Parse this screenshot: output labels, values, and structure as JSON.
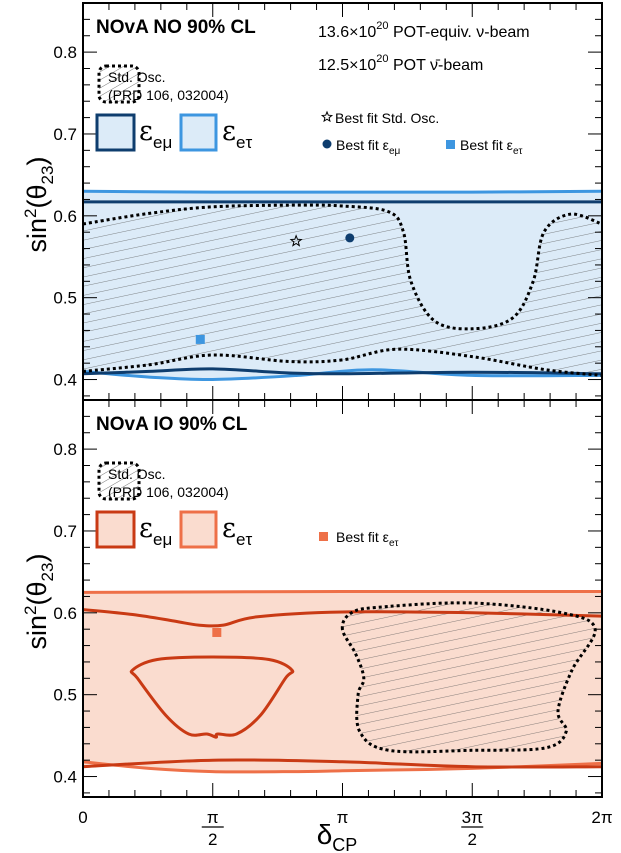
{
  "chart_data": [
    {
      "type": "area",
      "title": "NOvA NO 90% CL",
      "exposure_lines": [
        "13.6×10^20 POT-equiv. ν-beam",
        "12.5×10^20 POT ν̄-beam"
      ],
      "xlabel": "δCP",
      "ylabel": "sin²(θ23)",
      "xlim": [
        0,
        6.2832
      ],
      "ylim": [
        0.375,
        0.86
      ],
      "x_tick_labels": [
        "0",
        "π/2",
        "π",
        "3π/2",
        "2π"
      ],
      "y_tick_labels": [
        "0.4",
        "0.5",
        "0.6",
        "0.7",
        "0.8"
      ],
      "legend": {
        "std_label": [
          "Std. Osc.",
          "(PRD 106, 032004)"
        ],
        "eps_labels": [
          "ε_eμ",
          "ε_eτ"
        ],
        "best_fit_labels": [
          "Best fit Std. Osc.",
          "Best fit ε_eμ",
          "Best fit ε_eτ"
        ]
      },
      "colors": {
        "emu": "#0e3d6e",
        "etau": "#3d96e0",
        "fill": "#dcebf8"
      },
      "series": [
        {
          "name": "ε_eμ",
          "upper": [
            [
              0,
              0.617
            ],
            [
              1.57,
              0.617
            ],
            [
              3.14,
              0.617
            ],
            [
              4.71,
              0.617
            ],
            [
              6.28,
              0.617
            ]
          ],
          "lower": [
            [
              0,
              0.407
            ],
            [
              0.8,
              0.41
            ],
            [
              1.57,
              0.413
            ],
            [
              2.5,
              0.408
            ],
            [
              3.14,
              0.407
            ],
            [
              4.71,
              0.409
            ],
            [
              6.28,
              0.407
            ]
          ]
        },
        {
          "name": "ε_eτ",
          "upper": [
            [
              0,
              0.63
            ],
            [
              1.57,
              0.629
            ],
            [
              3.14,
              0.629
            ],
            [
              4.71,
              0.629
            ],
            [
              6.28,
              0.63
            ]
          ],
          "lower": [
            [
              0,
              0.41
            ],
            [
              0.8,
              0.403
            ],
            [
              1.57,
              0.4
            ],
            [
              2.6,
              0.405
            ],
            [
              3.5,
              0.412
            ],
            [
              4.71,
              0.405
            ],
            [
              6.28,
              0.405
            ]
          ]
        },
        {
          "name": "Std. Osc.",
          "upper": [
            [
              0,
              0.59
            ],
            [
              0.8,
              0.603
            ],
            [
              1.57,
              0.611
            ],
            [
              2.5,
              0.613
            ],
            [
              3.14,
              0.612
            ],
            [
              3.7,
              0.605
            ],
            [
              3.88,
              0.58
            ],
            [
              3.97,
              0.52
            ],
            [
              4.25,
              0.472
            ],
            [
              4.71,
              0.462
            ],
            [
              5.2,
              0.475
            ],
            [
              5.45,
              0.52
            ],
            [
              5.58,
              0.58
            ],
            [
              5.9,
              0.602
            ],
            [
              6.28,
              0.59
            ]
          ],
          "lower": [
            [
              0,
              0.41
            ],
            [
              0.8,
              0.418
            ],
            [
              1.57,
              0.43
            ],
            [
              2.5,
              0.422
            ],
            [
              3.14,
              0.424
            ],
            [
              3.8,
              0.437
            ],
            [
              4.71,
              0.428
            ],
            [
              5.6,
              0.412
            ],
            [
              6.28,
              0.405
            ]
          ]
        }
      ],
      "best_fits": [
        {
          "name": "Best fit Std. Osc.",
          "x": 2.58,
          "y": 0.569,
          "marker": "star"
        },
        {
          "name": "Best fit ε_eμ",
          "x": 3.23,
          "y": 0.573,
          "marker": "circle"
        },
        {
          "name": "Best fit ε_eτ",
          "x": 1.42,
          "y": 0.449,
          "marker": "square"
        }
      ]
    },
    {
      "type": "area",
      "title": "NOvA IO 90% CL",
      "xlabel": "δCP",
      "ylabel": "sin²(θ23)",
      "xlim": [
        0,
        6.2832
      ],
      "ylim": [
        0.375,
        0.86
      ],
      "x_tick_labels": [
        "0",
        "π/2",
        "π",
        "3π/2",
        "2π"
      ],
      "y_tick_labels": [
        "0.4",
        "0.5",
        "0.6",
        "0.7",
        "0.8"
      ],
      "legend": {
        "std_label": [
          "Std. Osc.",
          "(PRD 106, 032004)"
        ],
        "eps_labels": [
          "ε_eμ",
          "ε_eτ"
        ],
        "best_fit_labels": [
          "Best fit ε_eτ"
        ]
      },
      "colors": {
        "emu": "#c93a14",
        "etau": "#ee7048",
        "fill": "#fadccf"
      },
      "series": [
        {
          "name": "ε_eμ",
          "upper": [
            [
              0,
              0.604
            ],
            [
              0.6,
              0.598
            ],
            [
              1.1,
              0.59
            ],
            [
              1.4,
              0.585
            ],
            [
              1.7,
              0.585
            ],
            [
              2.1,
              0.595
            ],
            [
              3.14,
              0.601
            ],
            [
              4.71,
              0.6
            ],
            [
              6.28,
              0.596
            ]
          ],
          "lower": [
            [
              0,
              0.412
            ],
            [
              1.57,
              0.42
            ],
            [
              3.14,
              0.418
            ],
            [
              4.71,
              0.412
            ],
            [
              6.28,
              0.412
            ]
          ],
          "island": [
            [
              1.61,
              0.448
            ],
            [
              1.5,
              0.452
            ],
            [
              1.28,
              0.452
            ],
            [
              1.0,
              0.475
            ],
            [
              0.66,
              0.52
            ],
            [
              0.6,
              0.53
            ],
            [
              0.9,
              0.543
            ],
            [
              1.57,
              0.546
            ],
            [
              2.25,
              0.543
            ],
            [
              2.53,
              0.53
            ],
            [
              2.45,
              0.52
            ],
            [
              2.15,
              0.475
            ],
            [
              1.86,
              0.452
            ],
            [
              1.63,
              0.452
            ]
          ]
        },
        {
          "name": "ε_eτ",
          "upper": [
            [
              0,
              0.625
            ],
            [
              3.14,
              0.626
            ],
            [
              6.28,
              0.626
            ]
          ],
          "lower": [
            [
              0,
              0.418
            ],
            [
              0.8,
              0.41
            ],
            [
              1.57,
              0.406
            ],
            [
              2.5,
              0.406
            ],
            [
              3.14,
              0.407
            ],
            [
              4.71,
              0.41
            ],
            [
              6.28,
              0.416
            ]
          ]
        },
        {
          "name": "Std. Osc.",
          "contour": [
            [
              3.14,
              0.58
            ],
            [
              3.25,
              0.6
            ],
            [
              3.6,
              0.607
            ],
            [
              4.71,
              0.612
            ],
            [
              5.8,
              0.6
            ],
            [
              6.2,
              0.58
            ],
            [
              5.92,
              0.53
            ],
            [
              5.75,
              0.48
            ],
            [
              5.85,
              0.455
            ],
            [
              5.6,
              0.435
            ],
            [
              4.71,
              0.432
            ],
            [
              3.7,
              0.432
            ],
            [
              3.35,
              0.455
            ],
            [
              3.33,
              0.5
            ],
            [
              3.4,
              0.52
            ],
            [
              3.3,
              0.55
            ]
          ]
        }
      ],
      "best_fits": [
        {
          "name": "Best fit ε_eτ",
          "x": 1.62,
          "y": 0.576,
          "marker": "square"
        }
      ]
    }
  ]
}
